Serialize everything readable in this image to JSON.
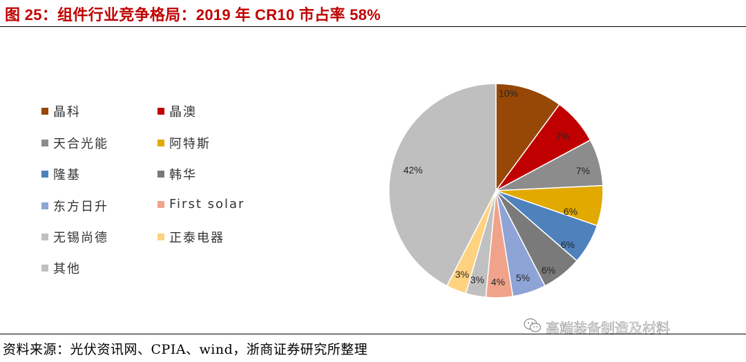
{
  "title": "图 25：组件行业竞争格局：2019 年 CR10 市占率 58%",
  "source": "资料来源：光伏资讯网、CPIA、wind，浙商证券研究所整理",
  "watermark": "高端装备制造及材料",
  "chart_data": {
    "type": "pie",
    "title": "组件行业竞争格局：2019 年 CR10 市占率 58%",
    "start_angle": "12 o'clock, clockwise",
    "legend_position": "left",
    "slices": [
      {
        "name": "晶科",
        "value": 10,
        "label": "10%",
        "color": "#974706"
      },
      {
        "name": "晶澳",
        "value": 7,
        "label": "7%",
        "color": "#c00000"
      },
      {
        "name": "天合光能",
        "value": 7,
        "label": "7%",
        "color": "#8c8c8c"
      },
      {
        "name": "阿特斯",
        "value": 6,
        "label": "6%",
        "color": "#e2a900"
      },
      {
        "name": "隆基",
        "value": 6,
        "label": "6%",
        "color": "#4f81bd"
      },
      {
        "name": "韩华",
        "value": 6,
        "label": "6%",
        "color": "#7a7a7a"
      },
      {
        "name": "东方日升",
        "value": 5,
        "label": "5%",
        "color": "#8ea3d6"
      },
      {
        "name": "First solar",
        "value": 4,
        "label": "4%",
        "color": "#f0a38a"
      },
      {
        "name": "无锡尚德",
        "value": 3,
        "label": "3%",
        "color": "#c0c0c0"
      },
      {
        "name": "正泰电器",
        "value": 3,
        "label": "3%",
        "color": "#ffd280"
      },
      {
        "name": "其他",
        "value": 42,
        "label": "42%",
        "color": "#bfbfbf"
      }
    ]
  }
}
